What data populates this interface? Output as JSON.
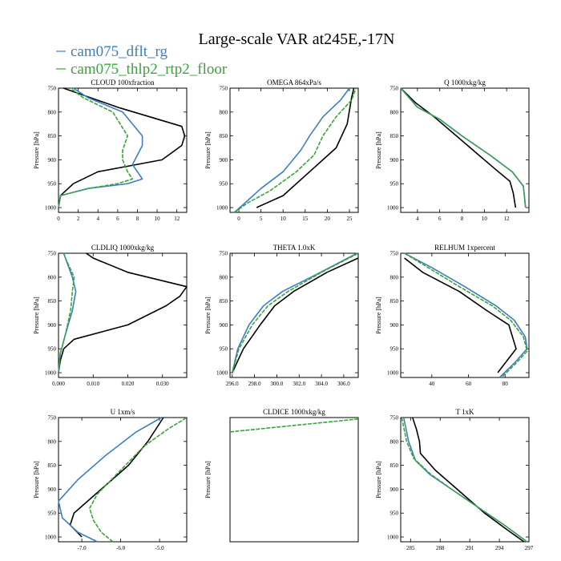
{
  "title": "Large-scale VAR at245E,-17N",
  "legend": [
    {
      "name": "cam075_dflt_rg",
      "color": "#3b7fc4"
    },
    {
      "name": "cam075_thlp2_rtp2_floor",
      "color": "#3aa33a"
    }
  ],
  "colors": {
    "obs": "#000000",
    "dflt": "#3b7fc4",
    "thlp2": "#3aa33a"
  },
  "y_axis": {
    "label": "Pressure [hPa]",
    "range": [
      1010,
      750
    ],
    "ticks": [
      750,
      800,
      850,
      900,
      950,
      1000
    ],
    "tick_labels": [
      "750",
      "800",
      "850",
      "900",
      "950",
      "1000"
    ]
  },
  "chart_data": [
    {
      "type": "line",
      "title": "CLOUD  100xfraction",
      "ylabel": "Pressure [hPa]",
      "xlim": [
        0,
        13
      ],
      "xticks": [
        0,
        2,
        4,
        6,
        8,
        10,
        12
      ],
      "xtick_labels": [
        "0",
        "2",
        "4",
        "6",
        "8",
        "10",
        "12"
      ],
      "series": [
        {
          "key": "obs",
          "points": [
            [
              0,
              1000
            ],
            [
              0.2,
              975
            ],
            [
              1.5,
              950
            ],
            [
              4,
              925
            ],
            [
              10.5,
              900
            ],
            [
              12.5,
              870
            ],
            [
              12.8,
              850
            ],
            [
              12.5,
              830
            ],
            [
              6,
              790
            ],
            [
              0.5,
              750
            ]
          ]
        },
        {
          "key": "dflt",
          "points": [
            [
              0,
              1000
            ],
            [
              0.2,
              975
            ],
            [
              3,
              960
            ],
            [
              7,
              950
            ],
            [
              8.5,
              940
            ],
            [
              8,
              925
            ],
            [
              7.5,
              910
            ],
            [
              8.5,
              870
            ],
            [
              8.5,
              850
            ],
            [
              6.5,
              800
            ],
            [
              3,
              770
            ],
            [
              1.5,
              750
            ]
          ]
        },
        {
          "key": "thlp2",
          "points": [
            [
              0,
              1000
            ],
            [
              0.2,
              975
            ],
            [
              3,
              960
            ],
            [
              6,
              950
            ],
            [
              7.5,
              940
            ],
            [
              7,
              925
            ],
            [
              6.5,
              900
            ],
            [
              6.5,
              880
            ],
            [
              7,
              850
            ],
            [
              5.5,
              800
            ],
            [
              2.5,
              770
            ],
            [
              1.2,
              750
            ]
          ]
        }
      ]
    },
    {
      "type": "line",
      "title": "OMEGA  864xPa/s",
      "ylabel": "Pressure [hPa]",
      "xlim": [
        -2,
        27
      ],
      "xticks": [
        0,
        5,
        10,
        15,
        20,
        25
      ],
      "xtick_labels": [
        "0",
        "5",
        "10",
        "15",
        "20",
        "25"
      ],
      "series": [
        {
          "key": "obs",
          "points": [
            [
              4,
              1000
            ],
            [
              10,
              975
            ],
            [
              16,
              925
            ],
            [
              19,
              900
            ],
            [
              22,
              875
            ],
            [
              24.5,
              825
            ],
            [
              25.5,
              770
            ],
            [
              26,
              750
            ]
          ]
        },
        {
          "key": "dflt",
          "points": [
            [
              -1,
              1010
            ],
            [
              2,
              985
            ],
            [
              5,
              960
            ],
            [
              10,
              925
            ],
            [
              14,
              880
            ],
            [
              16,
              850
            ],
            [
              19,
              810
            ],
            [
              23,
              775
            ],
            [
              25,
              750
            ]
          ]
        },
        {
          "key": "thlp2",
          "points": [
            [
              -1,
              1010
            ],
            [
              2,
              990
            ],
            [
              7,
              965
            ],
            [
              13,
              925
            ],
            [
              17,
              890
            ],
            [
              19,
              850
            ],
            [
              22,
              810
            ],
            [
              25.5,
              775
            ],
            [
              26.5,
              750
            ]
          ]
        }
      ]
    },
    {
      "type": "line",
      "title": "Q  1000xkg/kg",
      "ylabel": "Pressure [hPa]",
      "xlim": [
        2.5,
        14
      ],
      "xticks": [
        4,
        6,
        8,
        10,
        12
      ],
      "xtick_labels": [
        "4",
        "6",
        "8",
        "10",
        "12"
      ],
      "series": [
        {
          "key": "obs",
          "points": [
            [
              2.5,
              750
            ],
            [
              3.8,
              780
            ],
            [
              5.5,
              810
            ],
            [
              7.5,
              850
            ],
            [
              9.5,
              890
            ],
            [
              11,
              920
            ],
            [
              12.3,
              945
            ],
            [
              12.6,
              970
            ],
            [
              12.8,
              1000
            ]
          ]
        },
        {
          "key": "dflt",
          "points": [
            [
              2.5,
              750
            ],
            [
              4,
              790
            ],
            [
              6,
              815
            ],
            [
              8,
              850
            ],
            [
              10.5,
              890
            ],
            [
              12.5,
              925
            ],
            [
              13.5,
              955
            ],
            [
              13.7,
              1000
            ]
          ]
        },
        {
          "key": "thlp2",
          "points": [
            [
              2.5,
              750
            ],
            [
              4,
              790
            ],
            [
              6,
              815
            ],
            [
              8,
              850
            ],
            [
              10.5,
              890
            ],
            [
              12.5,
              925
            ],
            [
              13.5,
              955
            ],
            [
              13.7,
              1000
            ]
          ]
        }
      ]
    },
    {
      "type": "line",
      "title": "CLDLIQ  1000xkg/kg",
      "ylabel": "Pressure [hPa]",
      "xlim": [
        0,
        0.037
      ],
      "xticks": [
        0,
        0.01,
        0.02,
        0.03
      ],
      "xtick_labels": [
        "0.000",
        "0.010",
        "0.020",
        "0.030"
      ],
      "series": [
        {
          "key": "obs",
          "points": [
            [
              0.0,
              1000
            ],
            [
              0.0005,
              975
            ],
            [
              0.0015,
              950
            ],
            [
              0.0045,
              930
            ],
            [
              0.02,
              900
            ],
            [
              0.031,
              860
            ],
            [
              0.035,
              840
            ],
            [
              0.037,
              820
            ],
            [
              0.02,
              790
            ],
            [
              0.01,
              760
            ],
            [
              0.008,
              750
            ]
          ]
        },
        {
          "key": "dflt",
          "points": [
            [
              0.0,
              1000
            ],
            [
              0.0005,
              960
            ],
            [
              0.002,
              920
            ],
            [
              0.004,
              870
            ],
            [
              0.005,
              830
            ],
            [
              0.004,
              800
            ],
            [
              0.002,
              760
            ],
            [
              0.0015,
              750
            ]
          ]
        },
        {
          "key": "thlp2",
          "points": [
            [
              0.0,
              1000
            ],
            [
              0.0005,
              960
            ],
            [
              0.002,
              920
            ],
            [
              0.0035,
              870
            ],
            [
              0.004,
              830
            ],
            [
              0.0045,
              800
            ],
            [
              0.002,
              760
            ],
            [
              0.0015,
              750
            ]
          ]
        }
      ]
    },
    {
      "type": "line",
      "title": "THETA  1.0xK",
      "ylabel": "Pressure [hPa]",
      "xlim": [
        295.8,
        307.3
      ],
      "xticks": [
        296,
        298,
        300,
        302,
        304,
        306
      ],
      "xtick_labels": [
        "296.0",
        "298.0",
        "300.0",
        "302.0",
        "304.0",
        "306.0"
      ],
      "series": [
        {
          "key": "obs",
          "points": [
            [
              296,
              1000
            ],
            [
              297,
              950
            ],
            [
              298.5,
              900
            ],
            [
              299.8,
              860
            ],
            [
              301.5,
              830
            ],
            [
              304.5,
              790
            ],
            [
              307.3,
              760
            ]
          ]
        },
        {
          "key": "dflt",
          "points": [
            [
              296,
              1000
            ],
            [
              296.5,
              950
            ],
            [
              297.5,
              900
            ],
            [
              298.8,
              860
            ],
            [
              300.5,
              830
            ],
            [
              303.5,
              795
            ],
            [
              307.2,
              750
            ]
          ]
        },
        {
          "key": "thlp2",
          "points": [
            [
              296,
              1000
            ],
            [
              296.6,
              950
            ],
            [
              297.8,
              900
            ],
            [
              299.2,
              860
            ],
            [
              301,
              830
            ],
            [
              304,
              790
            ],
            [
              307.3,
              750
            ]
          ]
        }
      ]
    },
    {
      "type": "line",
      "title": "RELHUM  1xpercent",
      "ylabel": "Pressure [hPa]",
      "xlim": [
        23,
        93
      ],
      "xticks": [
        40,
        60,
        80
      ],
      "xtick_labels": [
        "40",
        "60",
        "80"
      ],
      "series": [
        {
          "key": "obs",
          "points": [
            [
              25,
              760
            ],
            [
              35,
              790
            ],
            [
              55,
              830
            ],
            [
              70,
              870
            ],
            [
              82,
              900
            ],
            [
              86,
              950
            ],
            [
              76,
              1000
            ]
          ]
        },
        {
          "key": "dflt",
          "points": [
            [
              25,
              750
            ],
            [
              40,
              780
            ],
            [
              58,
              820
            ],
            [
              75,
              860
            ],
            [
              85,
              890
            ],
            [
              91,
              925
            ],
            [
              92,
              950
            ],
            [
              85,
              980
            ],
            [
              77,
              1010
            ]
          ]
        },
        {
          "key": "thlp2",
          "points": [
            [
              25,
              750
            ],
            [
              38,
              780
            ],
            [
              55,
              820
            ],
            [
              73,
              860
            ],
            [
              83,
              890
            ],
            [
              90,
              925
            ],
            [
              92,
              955
            ],
            [
              86,
              980
            ],
            [
              78,
              1010
            ]
          ]
        }
      ]
    },
    {
      "type": "line",
      "title": "U  1xm/s",
      "ylabel": "Pressure [hPa]",
      "xlim": [
        -7.6,
        -4.3
      ],
      "xticks": [
        -7,
        -6,
        -5
      ],
      "xtick_labels": [
        "-7.0",
        "-6.0",
        "-5.0"
      ],
      "series": [
        {
          "key": "obs",
          "points": [
            [
              -7.0,
              1000
            ],
            [
              -7.3,
              975
            ],
            [
              -7.2,
              950
            ],
            [
              -6.5,
              900
            ],
            [
              -5.8,
              850
            ],
            [
              -5.3,
              800
            ],
            [
              -4.9,
              750
            ]
          ]
        },
        {
          "key": "dflt",
          "points": [
            [
              -6.6,
              1010
            ],
            [
              -7.1,
              990
            ],
            [
              -7.5,
              960
            ],
            [
              -7.6,
              925
            ],
            [
              -7.1,
              880
            ],
            [
              -6.4,
              830
            ],
            [
              -5.6,
              780
            ],
            [
              -4.95,
              750
            ]
          ]
        },
        {
          "key": "thlp2",
          "points": [
            [
              -6.2,
              1010
            ],
            [
              -6.5,
              990
            ],
            [
              -6.7,
              965
            ],
            [
              -6.8,
              940
            ],
            [
              -6.6,
              910
            ],
            [
              -6.0,
              860
            ],
            [
              -5.4,
              810
            ],
            [
              -4.8,
              775
            ],
            [
              -4.3,
              750
            ]
          ]
        }
      ]
    },
    {
      "type": "line",
      "title": "CLDICE  1000xkg/kg",
      "ylabel": "Pressure [hPa]",
      "xlim": [
        0,
        1
      ],
      "xticks": [],
      "xtick_labels": [],
      "yticks_hidden": true,
      "series": [
        {
          "key": "thlp2",
          "points": [
            [
              0,
              780
            ],
            [
              1,
              753
            ]
          ]
        }
      ]
    },
    {
      "type": "line",
      "title": "T  1xK",
      "ylabel": "Pressure [hPa]",
      "xlim": [
        284,
        297
      ],
      "xticks": [
        285,
        288,
        291,
        294,
        297
      ],
      "xtick_labels": [
        "285",
        "288",
        "291",
        "294",
        "297"
      ],
      "series": [
        {
          "key": "obs",
          "points": [
            [
              285.2,
              750
            ],
            [
              285.6,
              775
            ],
            [
              285.9,
              800
            ],
            [
              286.0,
              825
            ],
            [
              287.5,
              860
            ],
            [
              290,
              905
            ],
            [
              292.5,
              950
            ],
            [
              294.8,
              985
            ],
            [
              296.5,
              1010
            ]
          ]
        },
        {
          "key": "dflt",
          "points": [
            [
              284.3,
              750
            ],
            [
              284.8,
              800
            ],
            [
              285.5,
              840
            ],
            [
              287,
              870
            ],
            [
              289.5,
              905
            ],
            [
              292,
              940
            ],
            [
              294.5,
              975
            ],
            [
              296.8,
              1010
            ]
          ]
        },
        {
          "key": "thlp2",
          "points": [
            [
              284.1,
              750
            ],
            [
              284.6,
              800
            ],
            [
              285.3,
              835
            ],
            [
              287,
              868
            ],
            [
              289.5,
              905
            ],
            [
              292,
              940
            ],
            [
              294.5,
              975
            ],
            [
              296.8,
              1010
            ]
          ]
        }
      ]
    }
  ]
}
